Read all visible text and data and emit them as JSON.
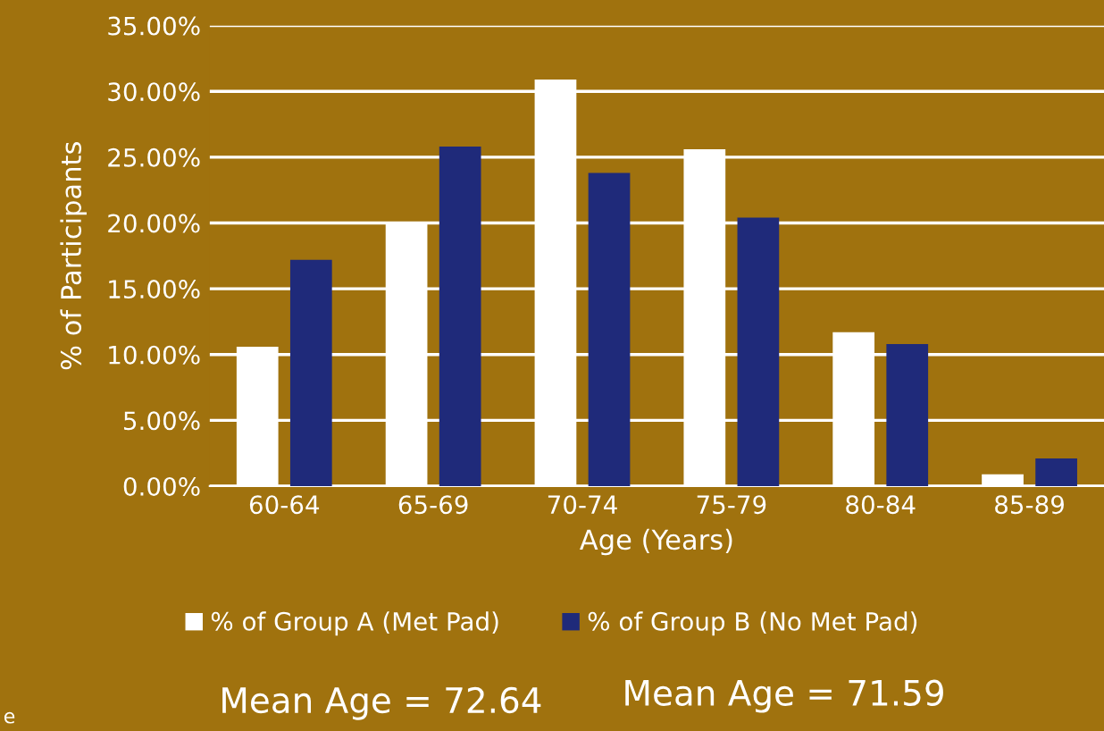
{
  "chart_data": {
    "type": "bar",
    "xlabel": "Age (Years)",
    "ylabel": "% of Participants",
    "categories": [
      "60-64",
      "65-69",
      "70-74",
      "75-79",
      "80-84",
      "85-89"
    ],
    "series": [
      {
        "name": "% of Group A (Met Pad)",
        "color": "#ffffff",
        "values": [
          10.6,
          20.1,
          30.9,
          25.6,
          11.7,
          0.9
        ]
      },
      {
        "name": "% of Group B (No Met Pad)",
        "color": "#1f2a7a",
        "values": [
          17.2,
          25.8,
          23.8,
          20.4,
          10.8,
          2.1
        ]
      }
    ],
    "ylim": [
      0,
      35
    ],
    "yticks": [
      {
        "value": 0,
        "label": "0.00%"
      },
      {
        "value": 5,
        "label": "5.00%"
      },
      {
        "value": 10,
        "label": "10.00%"
      },
      {
        "value": 15,
        "label": "15.00%"
      },
      {
        "value": 20,
        "label": "20.00%"
      },
      {
        "value": 25,
        "label": "25.00%"
      },
      {
        "value": 30,
        "label": "30.00%"
      },
      {
        "value": 35,
        "label": "35.00%"
      }
    ],
    "grid": "y",
    "legend": "bottom",
    "annotations": [
      "Mean Age = 72.64",
      "Mean Age = 71.59",
      "e"
    ]
  }
}
